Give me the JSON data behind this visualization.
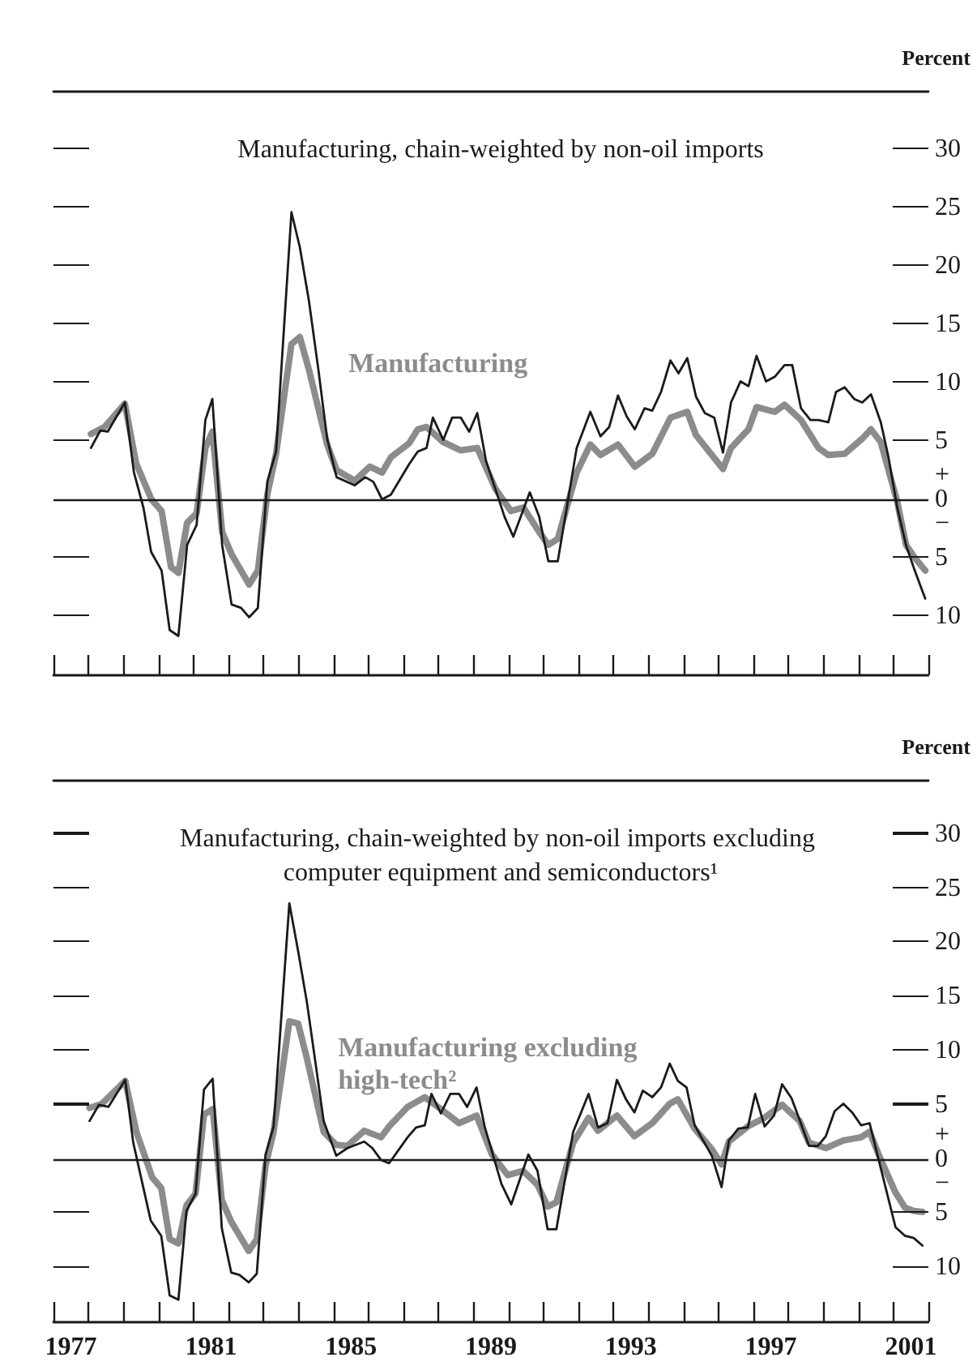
{
  "chart_data": [
    {
      "type": "line",
      "ylabel": "Percent",
      "xlim": [
        1977,
        2002
      ],
      "ylim": [
        -15,
        35
      ],
      "xticks": [
        {
          "value": 1977,
          "label": null
        },
        {
          "value": 1978,
          "label": null
        },
        {
          "value": 1979,
          "label": null
        },
        {
          "value": 1980,
          "label": null
        },
        {
          "value": 1981,
          "label": null
        },
        {
          "value": 1982,
          "label": null
        },
        {
          "value": 1983,
          "label": null
        },
        {
          "value": 1984,
          "label": null
        },
        {
          "value": 1985,
          "label": null
        },
        {
          "value": 1986,
          "label": null
        },
        {
          "value": 1987,
          "label": null
        },
        {
          "value": 1988,
          "label": null
        },
        {
          "value": 1989,
          "label": null
        },
        {
          "value": 1990,
          "label": null
        },
        {
          "value": 1991,
          "label": null
        },
        {
          "value": 1992,
          "label": null
        },
        {
          "value": 1993,
          "label": null
        },
        {
          "value": 1994,
          "label": null
        },
        {
          "value": 1995,
          "label": null
        },
        {
          "value": 1996,
          "label": null
        },
        {
          "value": 1997,
          "label": null
        },
        {
          "value": 1998,
          "label": null
        },
        {
          "value": 1999,
          "label": null
        },
        {
          "value": 2000,
          "label": null
        },
        {
          "value": 2001,
          "label": null
        },
        {
          "value": 2002,
          "label": null
        }
      ],
      "yticks": [
        {
          "value": -10,
          "label": "10"
        },
        {
          "value": -5,
          "label": "5"
        },
        {
          "value": 0,
          "label": "+\n0\n−"
        },
        5,
        10,
        15,
        20,
        25,
        30
      ],
      "tick_labels": "y",
      "legend": false,
      "grid": false,
      "marker": "none",
      "line_style": "solid",
      "ref_lines": [
        {
          "axis": "y",
          "value": 0,
          "label": null,
          "color": "#1a1a1a"
        }
      ],
      "series": [
        {
          "name": "Manufacturing",
          "color": "#8c8c8c",
          "x": [
            1978.07,
            1978.46,
            1979.04,
            1979.36,
            1979.8,
            1980.09,
            1980.36,
            1980.57,
            1980.82,
            1981.09,
            1981.34,
            1981.54,
            1981.82,
            1982.09,
            1982.59,
            1982.84,
            1983.11,
            1983.36,
            1983.8,
            1984.04,
            1984.3,
            1984.82,
            1985.09,
            1985.61,
            1986.04,
            1986.39,
            1986.64,
            1987.16,
            1987.41,
            1987.66,
            1988.14,
            1988.64,
            1989.11,
            1989.63,
            1990.07,
            1990.43,
            1990.88,
            1991.14,
            1991.41,
            1991.95,
            1992.34,
            1992.63,
            1993.13,
            1993.61,
            1994.11,
            1994.63,
            1995.11,
            1995.36,
            1996.13,
            1996.36,
            1996.86,
            1997.09,
            1997.61,
            1997.89,
            1998.36,
            1998.86,
            1999.14,
            1999.61,
            2000.11,
            2000.36,
            2000.64,
            2001.11,
            2001.36,
            2001.61,
            2001.91
          ],
          "values": [
            5.6,
            6.2,
            8.2,
            3.1,
            0,
            -1.0,
            -5.8,
            -6.3,
            -2.0,
            -1.2,
            4.4,
            5.8,
            -2.8,
            -4.7,
            -7.3,
            -6.1,
            0.4,
            3.9,
            13.3,
            13.9,
            11.1,
            4.7,
            2.5,
            1.6,
            2.8,
            2.3,
            3.6,
            4.8,
            6.0,
            6.2,
            4.9,
            4.2,
            4.4,
            0.9,
            -1.0,
            -0.7,
            -2.8,
            -3.9,
            -3.4,
            2.3,
            4.7,
            3.8,
            4.7,
            2.8,
            3.9,
            7.0,
            7.5,
            5.5,
            2.6,
            4.4,
            6.0,
            7.9,
            7.5,
            8.1,
            6.8,
            4.4,
            3.8,
            3.9,
            5.2,
            6.0,
            4.9,
            -0.2,
            -3.9,
            -5.0,
            -6.1
          ]
        },
        {
          "name": "Manufacturing, chain-weighted by non-oil imports",
          "color": "#1a1a1a",
          "x": [
            1978.07,
            1978.34,
            1978.55,
            1979.04,
            1979.3,
            1979.57,
            1979.79,
            1980.09,
            1980.32,
            1980.57,
            1980.82,
            1981.09,
            1981.34,
            1981.54,
            1981.82,
            1982.09,
            1982.36,
            1982.59,
            1982.84,
            1983.11,
            1983.36,
            1983.8,
            1984.04,
            1984.3,
            1984.57,
            1984.82,
            1985.09,
            1985.61,
            1985.91,
            1986.14,
            1986.39,
            1986.64,
            1987.16,
            1987.41,
            1987.66,
            1987.84,
            1988.14,
            1988.39,
            1988.64,
            1988.88,
            1989.11,
            1989.36,
            1989.89,
            1990.14,
            1990.61,
            1990.88,
            1991.14,
            1991.41,
            1991.64,
            1991.95,
            1992.34,
            1992.63,
            1992.88,
            1993.13,
            1993.38,
            1993.61,
            1993.89,
            1994.11,
            1994.36,
            1994.63,
            1994.86,
            1995.11,
            1995.36,
            1995.61,
            1995.88,
            1996.13,
            1996.36,
            1996.63,
            1996.86,
            1997.09,
            1997.36,
            1997.61,
            1997.89,
            1998.11,
            1998.36,
            1998.63,
            1998.86,
            1999.14,
            1999.36,
            1999.61,
            1999.88,
            2000.11,
            2000.36,
            2000.64,
            2000.86,
            2001.11,
            2001.36,
            2001.61,
            2001.91
          ],
          "values": [
            4.4,
            5.9,
            5.8,
            8.3,
            2.3,
            -0.7,
            -4.5,
            -6.1,
            -11.2,
            -11.7,
            -3.9,
            -2.2,
            6.8,
            8.6,
            -3.9,
            -9.0,
            -9.3,
            -10.1,
            -9.3,
            1.5,
            4.1,
            24.6,
            21.6,
            17.0,
            11.1,
            5.2,
            1.9,
            1.2,
            1.9,
            1.5,
            0,
            0.4,
            3.0,
            4.1,
            4.4,
            7.0,
            5.1,
            7.0,
            7.0,
            5.8,
            7.4,
            3.3,
            -1.5,
            -3.2,
            0.6,
            -1.5,
            -5.3,
            -5.3,
            -1.2,
            4.4,
            7.5,
            5.4,
            6.2,
            8.9,
            7.1,
            6.0,
            7.8,
            7.6,
            9.2,
            11.9,
            10.8,
            12.1,
            8.8,
            7.4,
            7.0,
            4.0,
            8.3,
            10.1,
            9.7,
            12.3,
            10.1,
            10.5,
            11.5,
            11.5,
            7.8,
            6.8,
            6.8,
            6.6,
            9.2,
            9.6,
            8.6,
            8.3,
            9.0,
            6.6,
            3.6,
            -0.7,
            -3.9,
            -6.1,
            -8.5
          ]
        }
      ]
    },
    {
      "type": "line",
      "ylabel": "Percent",
      "xlim": [
        1977,
        2002
      ],
      "ylim": [
        -15,
        35
      ],
      "xticks": [
        {
          "value": 1977,
          "label": null
        },
        {
          "value": 1977.5,
          "label": "1977"
        },
        {
          "value": 1978,
          "label": null
        },
        {
          "value": 1979,
          "label": null
        },
        {
          "value": 1980,
          "label": null
        },
        {
          "value": 1981,
          "label": null
        },
        {
          "value": 1981.5,
          "label": "1981"
        },
        {
          "value": 1982,
          "label": null
        },
        {
          "value": 1983,
          "label": null
        },
        {
          "value": 1984,
          "label": null
        },
        {
          "value": 1985,
          "label": null
        },
        {
          "value": 1985.5,
          "label": "1985"
        },
        {
          "value": 1986,
          "label": null
        },
        {
          "value": 1987,
          "label": null
        },
        {
          "value": 1988,
          "label": null
        },
        {
          "value": 1989,
          "label": null
        },
        {
          "value": 1989.5,
          "label": "1989"
        },
        {
          "value": 1990,
          "label": null
        },
        {
          "value": 1991,
          "label": null
        },
        {
          "value": 1992,
          "label": null
        },
        {
          "value": 1993,
          "label": null
        },
        {
          "value": 1993.5,
          "label": "1993"
        },
        {
          "value": 1994,
          "label": null
        },
        {
          "value": 1995,
          "label": null
        },
        {
          "value": 1996,
          "label": null
        },
        {
          "value": 1997,
          "label": null
        },
        {
          "value": 1997.5,
          "label": "1997"
        },
        {
          "value": 1998,
          "label": null
        },
        {
          "value": 1999,
          "label": null
        },
        {
          "value": 2000,
          "label": null
        },
        {
          "value": 2001,
          "label": null
        },
        {
          "value": 2001.5,
          "label": "2001"
        },
        {
          "value": 2002,
          "label": null
        }
      ],
      "yticks": [
        {
          "value": -10,
          "label": "10"
        },
        {
          "value": -5,
          "label": "5"
        },
        {
          "value": 0,
          "label": "+\n0\n−"
        },
        5,
        10,
        15,
        20,
        25,
        30
      ],
      "legend": false,
      "grid": false,
      "marker": "none",
      "line_style": "solid",
      "ref_lines": [
        {
          "axis": "y",
          "value": 0,
          "label": null,
          "color": "#1a1a1a"
        }
      ],
      "series": [
        {
          "name": "Manufacturing excluding high-tech²",
          "color": "#8c8c8c",
          "x": [
            1978.03,
            1978.39,
            1979.05,
            1979.37,
            1979.82,
            1980.08,
            1980.32,
            1980.57,
            1980.8,
            1981.06,
            1981.3,
            1981.55,
            1981.81,
            1982.08,
            1982.58,
            1982.81,
            1983.06,
            1983.29,
            1983.74,
            1983.99,
            1984.24,
            1984.72,
            1985.08,
            1985.4,
            1985.88,
            1986.36,
            1986.59,
            1987.12,
            1987.61,
            1988.07,
            1988.59,
            1989.09,
            1989.53,
            1989.98,
            1990.42,
            1990.83,
            1991.12,
            1991.37,
            1991.85,
            1992.29,
            1992.56,
            1993.1,
            1993.6,
            1994.11,
            1994.61,
            1994.84,
            1995.32,
            1995.81,
            1996.09,
            1996.3,
            1996.84,
            1997.32,
            1997.82,
            1998.32,
            1998.59,
            1999.07,
            1999.57,
            2000.08,
            2000.32,
            2000.58,
            2001.06,
            2001.33,
            2001.58,
            2001.83
          ],
          "values": [
            4.7,
            5.1,
            7.2,
            2.5,
            -1.7,
            -2.7,
            -7.4,
            -7.8,
            -4.3,
            -3.2,
            4.1,
            4.6,
            -3.8,
            -5.8,
            -8.5,
            -7.4,
            -0.6,
            2.5,
            12.7,
            12.5,
            9.3,
            2.5,
            1.3,
            1.2,
            2.6,
            2.0,
            3.0,
            4.8,
            5.7,
            4.6,
            3.3,
            4.0,
            0.4,
            -1.5,
            -1.1,
            -2.4,
            -4.4,
            -4.0,
            1.5,
            3.8,
            2.6,
            4.0,
            2.1,
            3.3,
            5.1,
            5.5,
            2.8,
            0.9,
            -0.5,
            1.6,
            3.0,
            3.8,
            5.0,
            3.5,
            1.5,
            1.0,
            1.7,
            2.0,
            2.5,
            0.4,
            -3.1,
            -4.5,
            -4.8,
            -4.9
          ]
        },
        {
          "name": "Manufacturing, chain-weighted by non-oil imports excluding computer equipment and semiconductors¹",
          "color": "#1a1a1a",
          "x": [
            1978.03,
            1978.3,
            1978.57,
            1979.05,
            1979.28,
            1979.55,
            1979.78,
            1980.08,
            1980.32,
            1980.57,
            1980.8,
            1981.06,
            1981.3,
            1981.55,
            1981.81,
            1982.08,
            1982.31,
            1982.58,
            1982.81,
            1983.06,
            1983.29,
            1983.74,
            1983.99,
            1984.24,
            1984.49,
            1984.72,
            1985.08,
            1985.4,
            1985.88,
            1986.11,
            1986.36,
            1986.59,
            1987.12,
            1987.36,
            1987.61,
            1987.8,
            1988.07,
            1988.34,
            1988.59,
            1988.82,
            1989.09,
            1989.32,
            1989.8,
            1990.08,
            1990.57,
            1990.83,
            1991.12,
            1991.37,
            1991.85,
            1992.29,
            1992.56,
            1992.83,
            1993.1,
            1993.36,
            1993.6,
            1993.84,
            1994.11,
            1994.36,
            1994.61,
            1994.84,
            1995.09,
            1995.32,
            1995.81,
            1996.09,
            1996.3,
            1996.57,
            1996.84,
            1997.05,
            1997.32,
            1997.59,
            1997.82,
            1998.09,
            1998.32,
            1998.59,
            1998.84,
            1999.07,
            1999.32,
            1999.57,
            1999.82,
            2000.08,
            2000.32,
            2000.58,
            2001.06,
            2001.33,
            2001.58,
            2001.83
          ],
          "values": [
            3.5,
            5.0,
            4.8,
            7.3,
            1.5,
            -2.4,
            -5.7,
            -7.1,
            -12.6,
            -13.0,
            -4.8,
            -3.2,
            6.4,
            7.4,
            -6.4,
            -10.5,
            -10.7,
            -11.4,
            -10.6,
            0.4,
            3.0,
            23.6,
            19.2,
            14.5,
            8.8,
            3.5,
            0.3,
            1.0,
            1.6,
            1.0,
            -0.1,
            -0.4,
            2.0,
            2.9,
            3.1,
            6.0,
            4.2,
            6.0,
            6.0,
            4.8,
            6.6,
            3.0,
            -2.3,
            -4.2,
            0.4,
            -1.1,
            -6.5,
            -6.5,
            2.5,
            6.0,
            2.9,
            3.3,
            7.3,
            5.5,
            4.3,
            6.3,
            5.7,
            6.6,
            8.8,
            7.2,
            6.6,
            3.1,
            0.3,
            -2.6,
            1.7,
            2.8,
            2.9,
            6.0,
            3.0,
            4.0,
            6.9,
            5.6,
            3.6,
            1.2,
            1.2,
            2.1,
            4.4,
            5.1,
            4.3,
            3.1,
            3.3,
            -0.1,
            -6.3,
            -7.1,
            -7.3,
            -8.0
          ]
        }
      ]
    }
  ]
}
